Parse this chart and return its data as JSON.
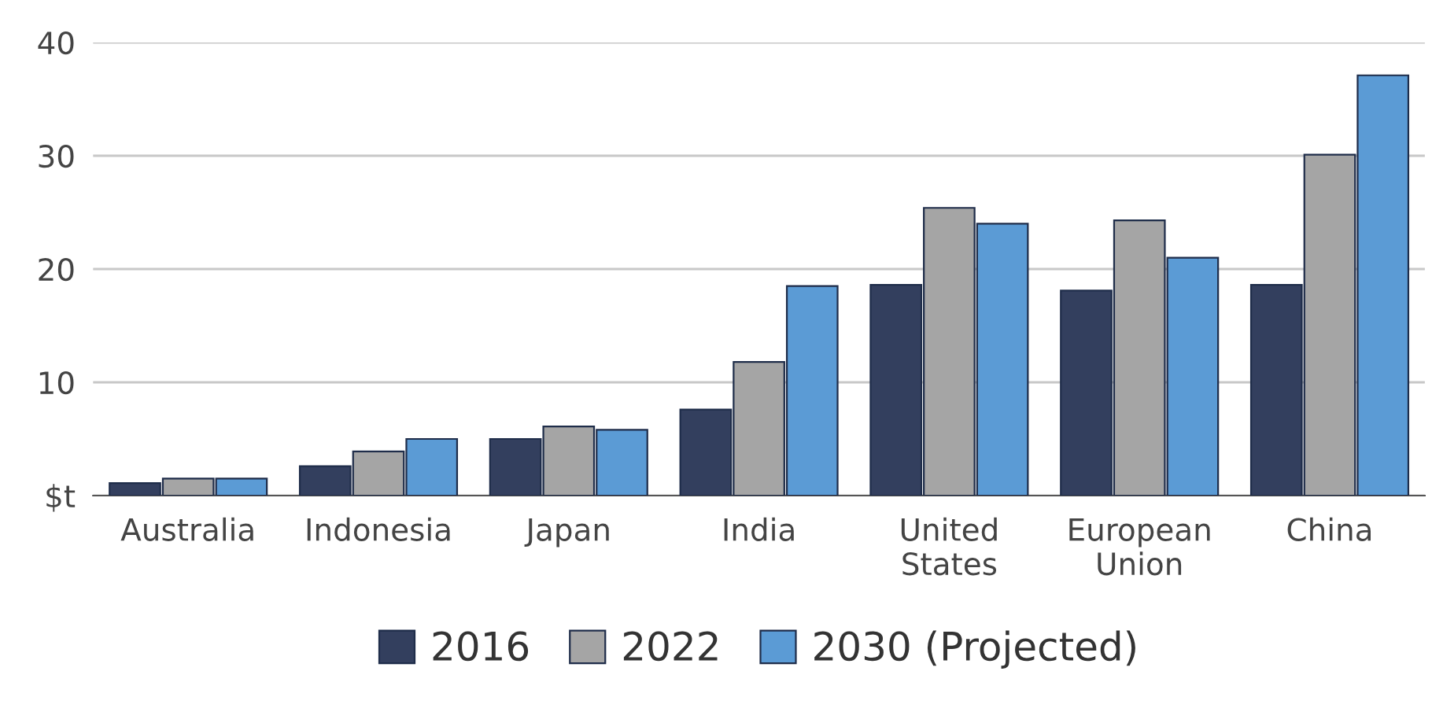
{
  "chart_data": {
    "type": "bar",
    "categories": [
      "Australia",
      "Indonesia",
      "Japan",
      "India",
      "United\nStates",
      "European\nUnion",
      "China"
    ],
    "series": [
      {
        "name": "2016",
        "color": "#333f5e",
        "values": [
          1.1,
          2.6,
          5.0,
          7.6,
          18.6,
          18.1,
          18.6
        ]
      },
      {
        "name": "2022",
        "color": "#a5a5a5",
        "values": [
          1.5,
          3.9,
          6.1,
          11.8,
          25.4,
          24.3,
          30.1
        ]
      },
      {
        "name": "2030 (Projected)",
        "color": "#5b9bd5",
        "values": [
          1.5,
          5.0,
          5.8,
          18.5,
          24.0,
          21.0,
          37.1
        ]
      }
    ],
    "ylim": [
      0,
      40
    ],
    "yticks": [
      {
        "value": 0,
        "label": "$t"
      },
      10,
      20,
      30,
      40
    ],
    "grid": "y",
    "legend": "bottom"
  }
}
